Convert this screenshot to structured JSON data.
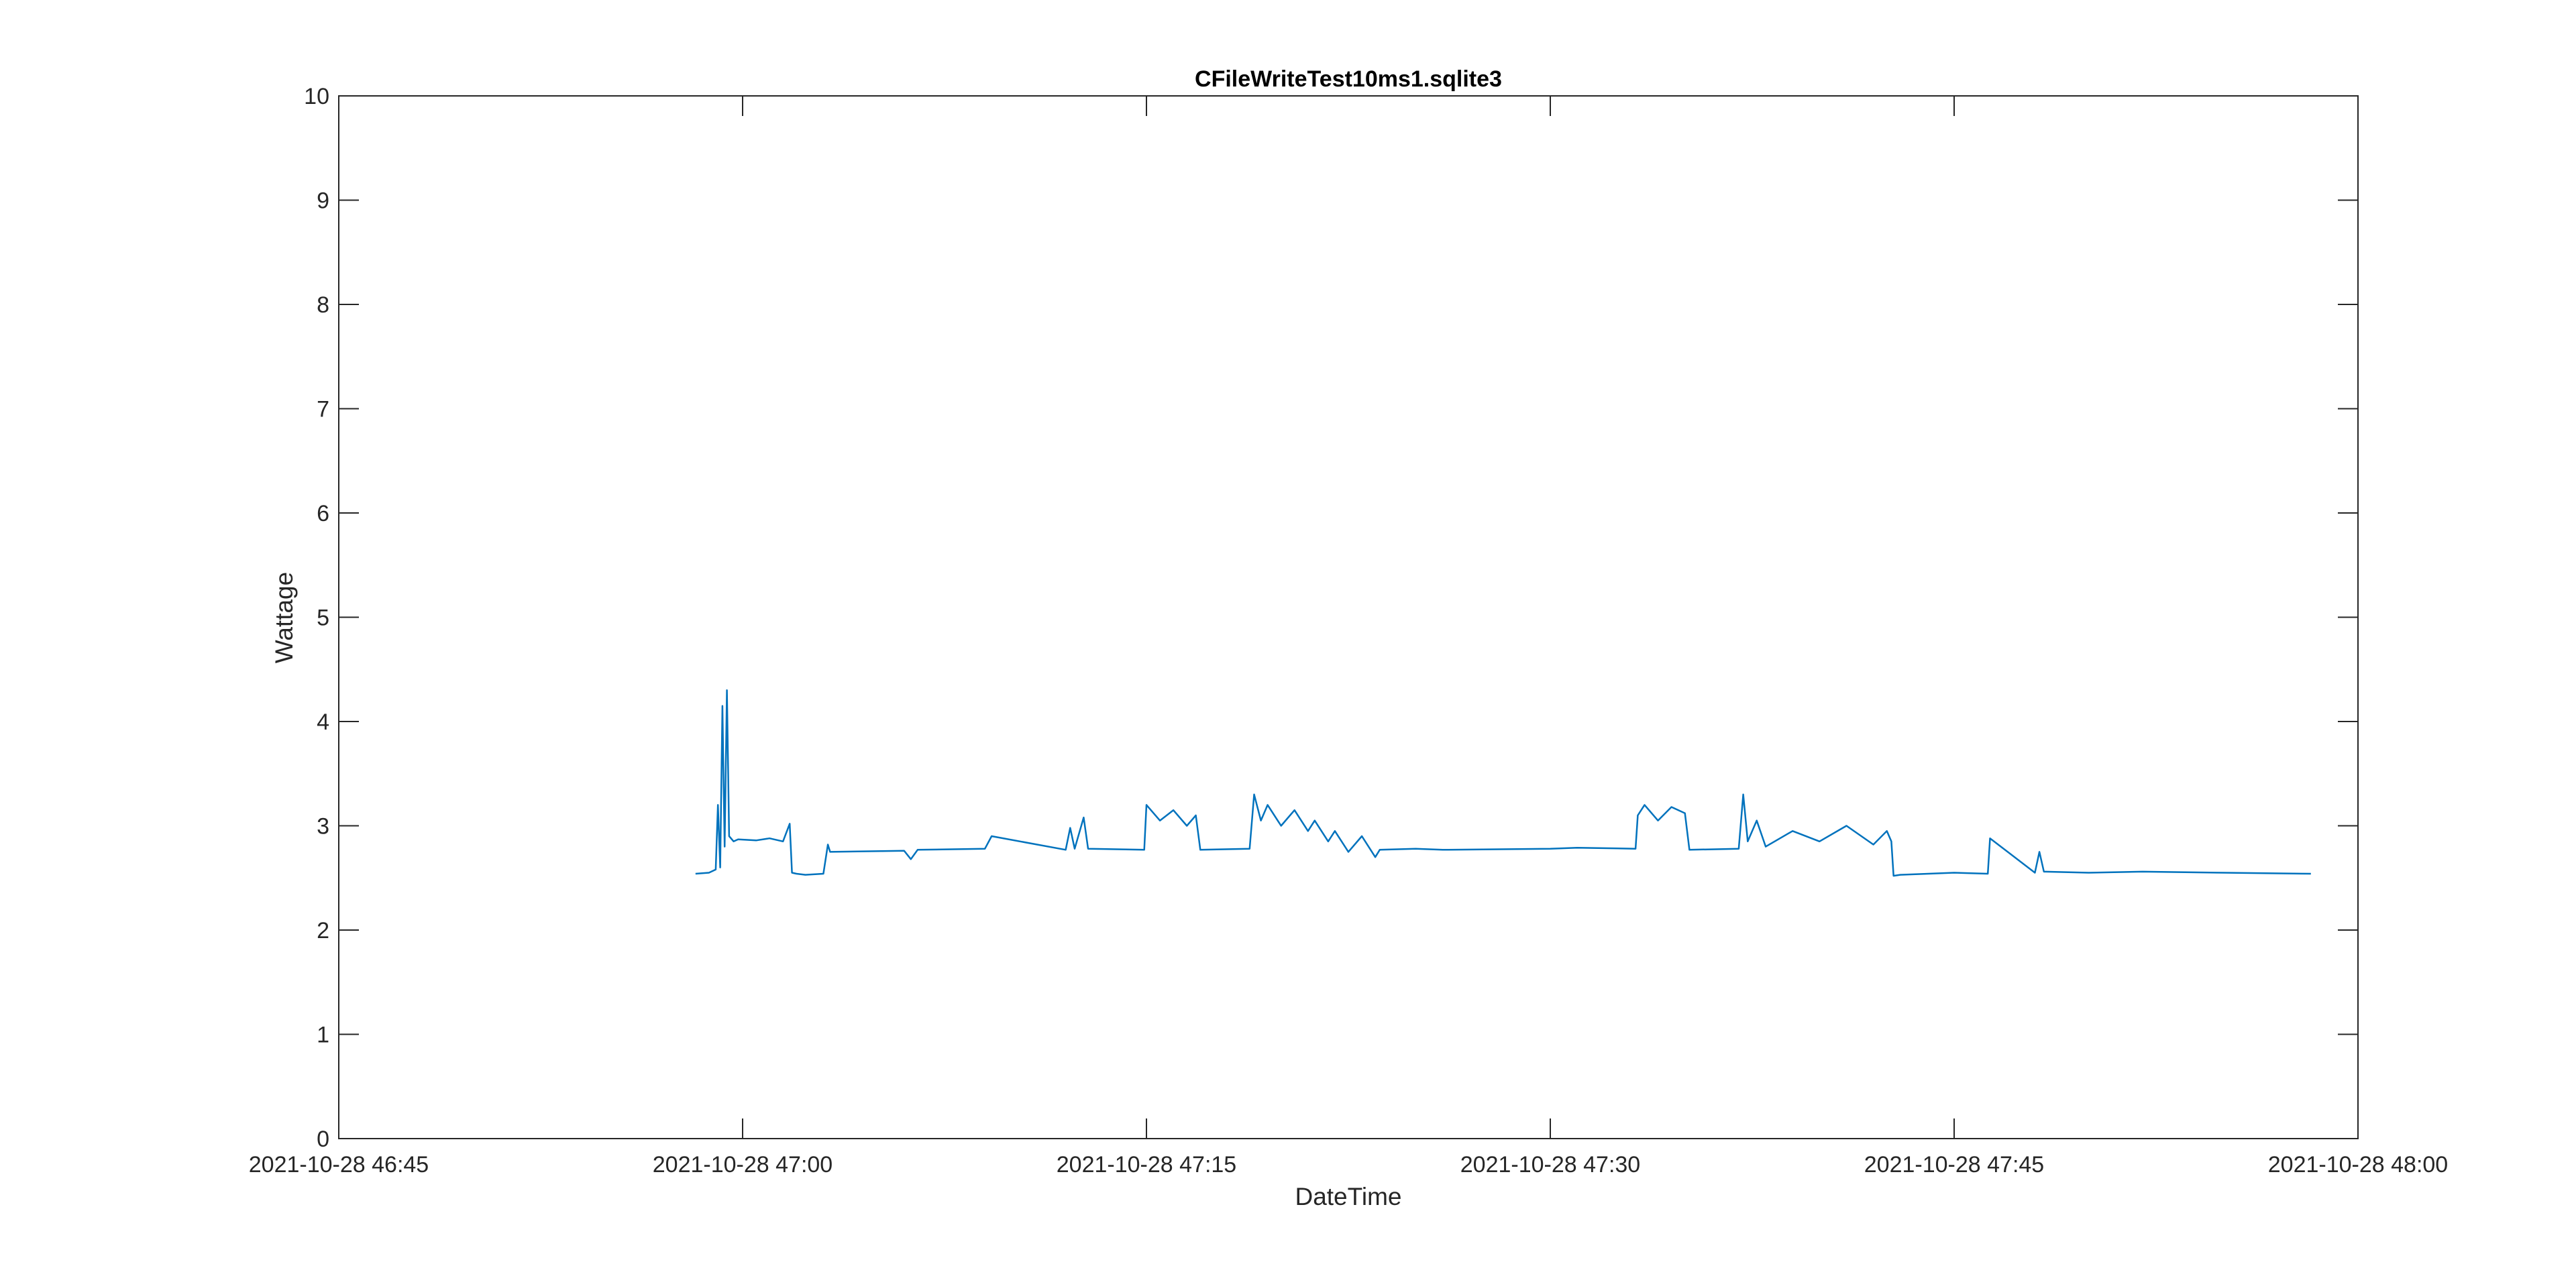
{
  "chart_data": {
    "type": "line",
    "title": "CFileWriteTest10ms1.sqlite3",
    "xlabel": "DateTime",
    "ylabel": "Wattage",
    "xlim": [
      "2021-10-28 46:45",
      "2021-10-28 48:00"
    ],
    "ylim": [
      0,
      10
    ],
    "x_ticks": [
      "2021-10-28 46:45",
      "2021-10-28 47:00",
      "2021-10-28 47:15",
      "2021-10-28 47:30",
      "2021-10-28 47:45",
      "2021-10-28 48:00"
    ],
    "y_ticks": [
      "0",
      "1",
      "2",
      "3",
      "4",
      "5",
      "6",
      "7",
      "8",
      "9",
      "10"
    ],
    "grid": false,
    "line_color": "#0072BD",
    "series": [
      {
        "x": [
          "2021-10-28 46:58:15",
          "2021-10-28 46:58:45",
          "2021-10-28 46:59:00",
          "2021-10-28 46:59:05",
          "2021-10-28 46:59:10",
          "2021-10-28 46:59:15",
          "2021-10-28 46:59:20",
          "2021-10-28 46:59:25",
          "2021-10-28 46:59:30",
          "2021-10-28 46:59:40",
          "2021-10-28 46:59:50",
          "2021-10-28 47:00:30",
          "2021-10-28 47:01:00",
          "2021-10-28 47:01:30",
          "2021-10-28 47:01:45",
          "2021-10-28 47:01:50",
          "2021-10-28 47:02:00",
          "2021-10-28 47:02:20",
          "2021-10-28 47:03:00",
          "2021-10-28 47:03:10",
          "2021-10-28 47:03:15",
          "2021-10-28 47:06:00",
          "2021-10-28 47:06:15",
          "2021-10-28 47:06:30",
          "2021-10-28 47:09:00",
          "2021-10-28 47:09:15",
          "2021-10-28 47:12:00",
          "2021-10-28 47:12:10",
          "2021-10-28 47:12:20",
          "2021-10-28 47:12:40",
          "2021-10-28 47:12:50",
          "2021-10-28 47:14:55",
          "2021-10-28 47:15:00",
          "2021-10-28 47:15:30",
          "2021-10-28 47:16:00",
          "2021-10-28 47:16:30",
          "2021-10-28 47:16:50",
          "2021-10-28 47:17:00",
          "2021-10-28 47:18:50",
          "2021-10-28 47:19:00",
          "2021-10-28 47:19:15",
          "2021-10-28 47:19:30",
          "2021-10-28 47:20:00",
          "2021-10-28 47:20:30",
          "2021-10-28 47:21:00",
          "2021-10-28 47:21:15",
          "2021-10-28 47:21:45",
          "2021-10-28 47:22:00",
          "2021-10-28 47:22:30",
          "2021-10-28 47:23:00",
          "2021-10-28 47:23:30",
          "2021-10-28 47:23:40",
          "2021-10-28 47:25:00",
          "2021-10-28 47:26:00",
          "2021-10-28 47:30:00",
          "2021-10-28 47:31:00",
          "2021-10-28 47:33:10",
          "2021-10-28 47:33:15",
          "2021-10-28 47:33:30",
          "2021-10-28 47:34:00",
          "2021-10-28 47:34:30",
          "2021-10-28 47:35:00",
          "2021-10-28 47:35:10",
          "2021-10-28 47:37:00",
          "2021-10-28 47:37:10",
          "2021-10-28 47:37:20",
          "2021-10-28 47:37:40",
          "2021-10-28 47:38:00",
          "2021-10-28 47:39:00",
          "2021-10-28 47:40:00",
          "2021-10-28 47:41:00",
          "2021-10-28 47:42:00",
          "2021-10-28 47:42:30",
          "2021-10-28 47:42:40",
          "2021-10-28 47:42:45",
          "2021-10-28 47:43:00",
          "2021-10-28 47:45:00",
          "2021-10-28 47:46:15",
          "2021-10-28 47:46:20",
          "2021-10-28 47:48:00",
          "2021-10-28 47:48:10",
          "2021-10-28 47:48:20",
          "2021-10-28 47:50:00",
          "2021-10-28 47:52:00",
          "2021-10-28 47:55:00",
          "2021-10-28 47:58:15"
        ],
        "values": [
          2.54,
          2.55,
          2.58,
          3.2,
          2.6,
          4.15,
          2.8,
          4.3,
          2.9,
          2.85,
          2.87,
          2.86,
          2.88,
          2.85,
          3.02,
          2.55,
          2.54,
          2.53,
          2.54,
          2.82,
          2.75,
          2.76,
          2.68,
          2.77,
          2.78,
          2.9,
          2.77,
          2.98,
          2.78,
          3.08,
          2.78,
          2.77,
          3.2,
          3.05,
          3.15,
          3.0,
          3.1,
          2.77,
          2.78,
          3.3,
          3.05,
          3.2,
          3.0,
          3.15,
          2.95,
          3.05,
          2.85,
          2.95,
          2.75,
          2.9,
          2.7,
          2.77,
          2.78,
          2.77,
          2.78,
          2.79,
          2.78,
          3.1,
          3.2,
          3.05,
          3.18,
          3.12,
          2.77,
          2.78,
          3.3,
          2.85,
          3.05,
          2.8,
          2.95,
          2.85,
          3.0,
          2.82,
          2.95,
          2.85,
          2.52,
          2.53,
          2.55,
          2.54,
          2.88,
          2.55,
          2.75,
          2.56,
          2.55,
          2.56,
          2.55,
          2.54
        ]
      }
    ]
  }
}
